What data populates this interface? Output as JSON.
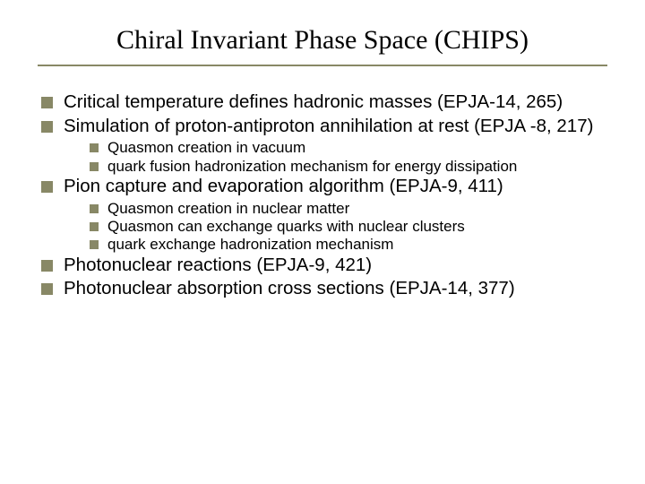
{
  "slide": {
    "title": "Chiral Invariant Phase Space (CHIPS)",
    "background_color": "#ffffff",
    "title_font_family": "Times New Roman",
    "title_fontsize": 30,
    "title_color": "#000000",
    "underline_color": "#888866",
    "bullet_color": "#888866",
    "body_font_family": "Arial",
    "l1_fontsize": 20.5,
    "l2_fontsize": 17,
    "bullets": [
      {
        "level": 1,
        "text": "Critical temperature defines hadronic masses (EPJA-14, 265)"
      },
      {
        "level": 1,
        "text": "Simulation of proton-antiproton annihilation at rest (EPJA -8, 217)"
      },
      {
        "level": 2,
        "text": "Quasmon creation in vacuum"
      },
      {
        "level": 2,
        "text": "quark fusion hadronization mechanism for energy dissipation"
      },
      {
        "level": 1,
        "text": "Pion capture and evaporation algorithm (EPJA-9, 411)"
      },
      {
        "level": 2,
        "text": "Quasmon creation in nuclear matter"
      },
      {
        "level": 2,
        "text": "Quasmon can exchange quarks with nuclear clusters"
      },
      {
        "level": 2,
        "text": "quark exchange hadronization mechanism"
      },
      {
        "level": 1,
        "text": "Photonuclear reactions (EPJA-9, 421)"
      },
      {
        "level": 1,
        "text": "Photonuclear absorption cross sections (EPJA-14, 377)"
      }
    ]
  }
}
